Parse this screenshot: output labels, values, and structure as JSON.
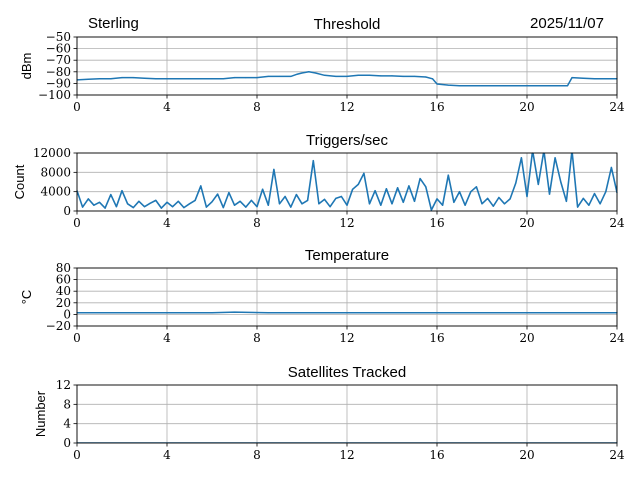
{
  "header": {
    "left": "Sterling",
    "right": "2025/11/07"
  },
  "chart_data": [
    {
      "type": "line",
      "title": "Threshold",
      "ylabel": "dBm",
      "xlim": [
        0,
        24
      ],
      "ylim": [
        -100,
        -50
      ],
      "xticks": [
        "0",
        "4",
        "8",
        "12",
        "16",
        "20",
        "24"
      ],
      "yticks": [
        "−50",
        "−60",
        "−70",
        "−80",
        "−90",
        "−100"
      ],
      "ytick_values": [
        -50,
        -60,
        -70,
        -80,
        -90,
        -100
      ],
      "grid": true,
      "x": [
        0,
        0.5,
        1,
        1.5,
        2,
        2.5,
        3,
        3.5,
        4,
        4.5,
        5,
        5.5,
        6,
        6.5,
        7,
        7.5,
        8,
        8.5,
        9,
        9.5,
        9.8,
        10,
        10.3,
        10.6,
        11,
        11.5,
        12,
        12.5,
        13,
        13.5,
        14,
        14.5,
        15,
        15.5,
        15.8,
        16,
        16.5,
        17,
        18,
        19,
        20,
        21,
        21.8,
        22,
        22.5,
        23,
        23.5,
        24
      ],
      "y": [
        -87,
        -86.5,
        -86,
        -86,
        -85,
        -85,
        -85.5,
        -86,
        -86,
        -86,
        -86,
        -86,
        -86,
        -86,
        -85,
        -85,
        -85,
        -84,
        -84,
        -84,
        -82,
        -81,
        -80,
        -81,
        -83,
        -84,
        -84,
        -83,
        -83,
        -83.5,
        -83.5,
        -84,
        -84,
        -84.5,
        -86,
        -90.5,
        -91.5,
        -92,
        -92,
        -92,
        -92,
        -92,
        -92,
        -85,
        -85.5,
        -86,
        -86,
        -86
      ]
    },
    {
      "type": "line",
      "title": "Triggers/sec",
      "ylabel": "Count",
      "xlim": [
        0,
        24
      ],
      "ylim": [
        0,
        12000
      ],
      "xticks": [
        "0",
        "4",
        "8",
        "12",
        "16",
        "20",
        "24"
      ],
      "yticks": [
        "12000",
        "8000",
        "4000",
        "0"
      ],
      "ytick_values": [
        12000,
        8000,
        4000,
        0
      ],
      "grid": true,
      "x_step": 0.25,
      "y": [
        4200,
        800,
        2500,
        1200,
        1800,
        600,
        3400,
        900,
        4200,
        1500,
        700,
        2000,
        900,
        1600,
        2200,
        600,
        1800,
        900,
        2000,
        700,
        1500,
        2200,
        5200,
        800,
        1900,
        3500,
        700,
        3800,
        1200,
        2000,
        800,
        2200,
        900,
        4500,
        1200,
        8600,
        1500,
        3000,
        800,
        3400,
        1500,
        2200,
        10400,
        1500,
        2400,
        900,
        2600,
        3000,
        1200,
        4500,
        5500,
        7800,
        1500,
        4200,
        1200,
        4600,
        1500,
        4800,
        1800,
        5200,
        2000,
        6700,
        5000,
        200,
        2500,
        1200,
        7400,
        1800,
        4000,
        1200,
        4000,
        5000,
        1500,
        2600,
        1000,
        2800,
        1500,
        2500,
        5800,
        11000,
        3000,
        12500,
        5500,
        12500,
        3500,
        11000,
        6000,
        2000,
        12500,
        800,
        2600,
        1200,
        3600,
        1500,
        4000,
        9000,
        3800
      ]
    },
    {
      "type": "line",
      "title": "Temperature",
      "ylabel": "°C",
      "xlim": [
        0,
        24
      ],
      "ylim": [
        -20,
        80
      ],
      "xticks": [
        "0",
        "4",
        "8",
        "12",
        "16",
        "20",
        "24"
      ],
      "yticks": [
        "80",
        "60",
        "40",
        "20",
        "0",
        "−20"
      ],
      "ytick_values": [
        80,
        60,
        40,
        20,
        0,
        -20
      ],
      "grid": true,
      "x": [
        0,
        6,
        7,
        8.5,
        9,
        24
      ],
      "y": [
        3,
        3,
        4,
        3,
        3,
        3
      ]
    },
    {
      "type": "line",
      "title": "Satellites Tracked",
      "ylabel": "Number",
      "xlim": [
        0,
        24
      ],
      "ylim": [
        0,
        12
      ],
      "xticks": [
        "0",
        "4",
        "8",
        "12",
        "16",
        "20",
        "24"
      ],
      "yticks": [
        "12",
        "8",
        "4",
        "0"
      ],
      "ytick_values": [
        12,
        8,
        4,
        0
      ],
      "grid": true,
      "x": [
        0,
        24
      ],
      "y": [
        0,
        0
      ]
    }
  ],
  "colors": {
    "line": "#1f77b4",
    "grid": "#b0b0b0"
  }
}
